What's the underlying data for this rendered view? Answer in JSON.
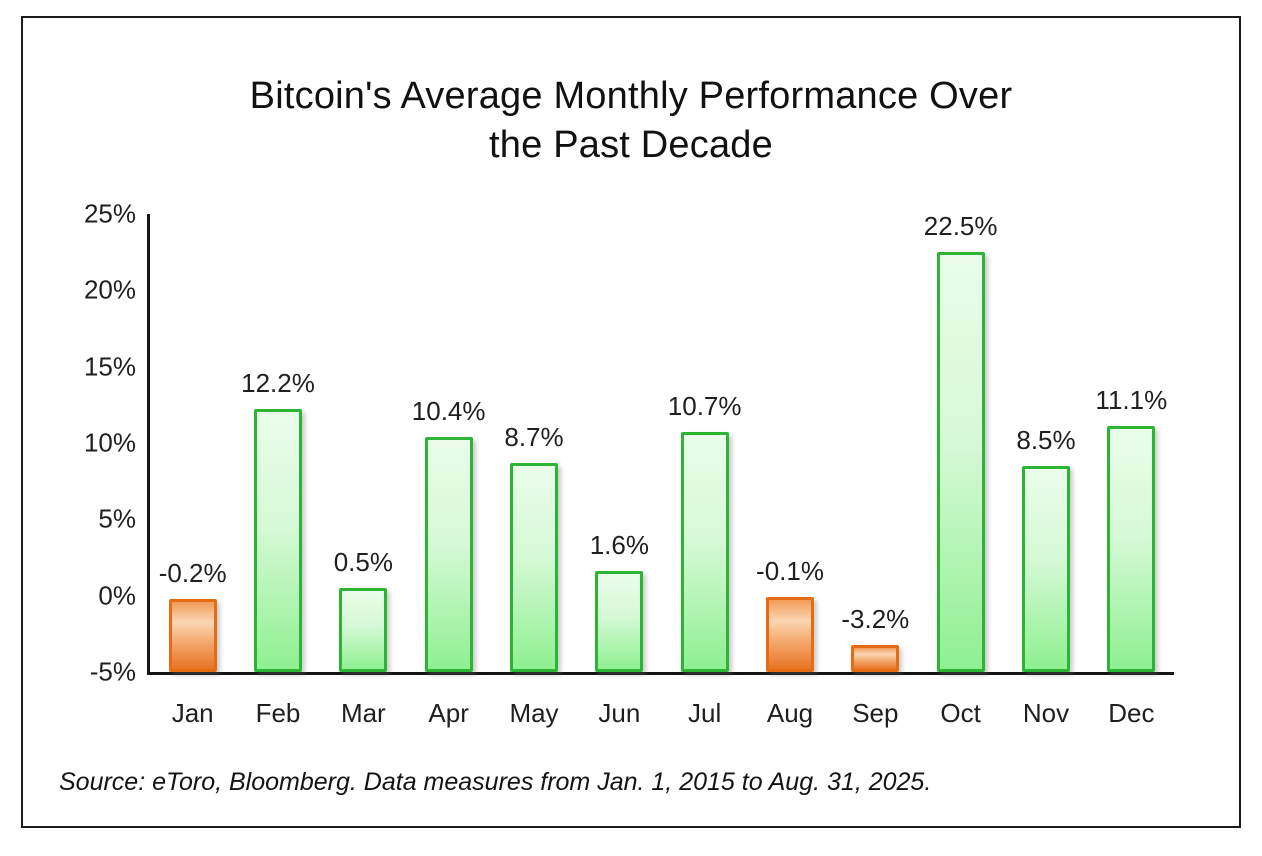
{
  "page": {
    "title_lines": [
      "Bitcoin's Average Monthly Performance Over",
      "the Past Decade"
    ],
    "source_note": "Source: eToro, Bloomberg. Data measures from Jan. 1, 2015 to Aug. 31, 2025."
  },
  "chart_data": {
    "type": "bar",
    "title": "Bitcoin's Average Monthly Performance Over the Past Decade",
    "categories": [
      "Jan",
      "Feb",
      "Mar",
      "Apr",
      "May",
      "Jun",
      "Jul",
      "Aug",
      "Sep",
      "Oct",
      "Nov",
      "Dec"
    ],
    "values": [
      -0.2,
      12.2,
      0.5,
      10.4,
      8.7,
      1.6,
      10.7,
      -0.1,
      -3.2,
      22.5,
      8.5,
      11.1
    ],
    "value_labels": [
      "-0.2%",
      "12.2%",
      "0.5%",
      "10.4%",
      "8.7%",
      "1.6%",
      "10.7%",
      "-0.1%",
      "-3.2%",
      "22.5%",
      "8.5%",
      "11.1%"
    ],
    "xlabel": "",
    "ylabel": "",
    "ylim": [
      -5,
      25
    ],
    "yticks": [
      25,
      20,
      15,
      10,
      5,
      0,
      -5
    ],
    "ytick_labels": [
      "25%",
      "20%",
      "15%",
      "10%",
      "5%",
      "0%",
      "-5%"
    ],
    "bar_base": -5,
    "grid": false,
    "legend_position": "none",
    "colors": {
      "positive_border": "#2cb434",
      "positive_fill_top": "#eafdea",
      "positive_fill_mid": "#d6f9d6",
      "positive_fill_bottom": "#8ff091",
      "negative_border": "#e56c10",
      "negative_fill_top": "#f19b58",
      "negative_fill_light": "#fbd6b4",
      "negative_fill_mid": "#f5b078",
      "negative_fill_bottom": "#e97324",
      "axis": "#151515",
      "text": "#1f1f1f"
    }
  }
}
